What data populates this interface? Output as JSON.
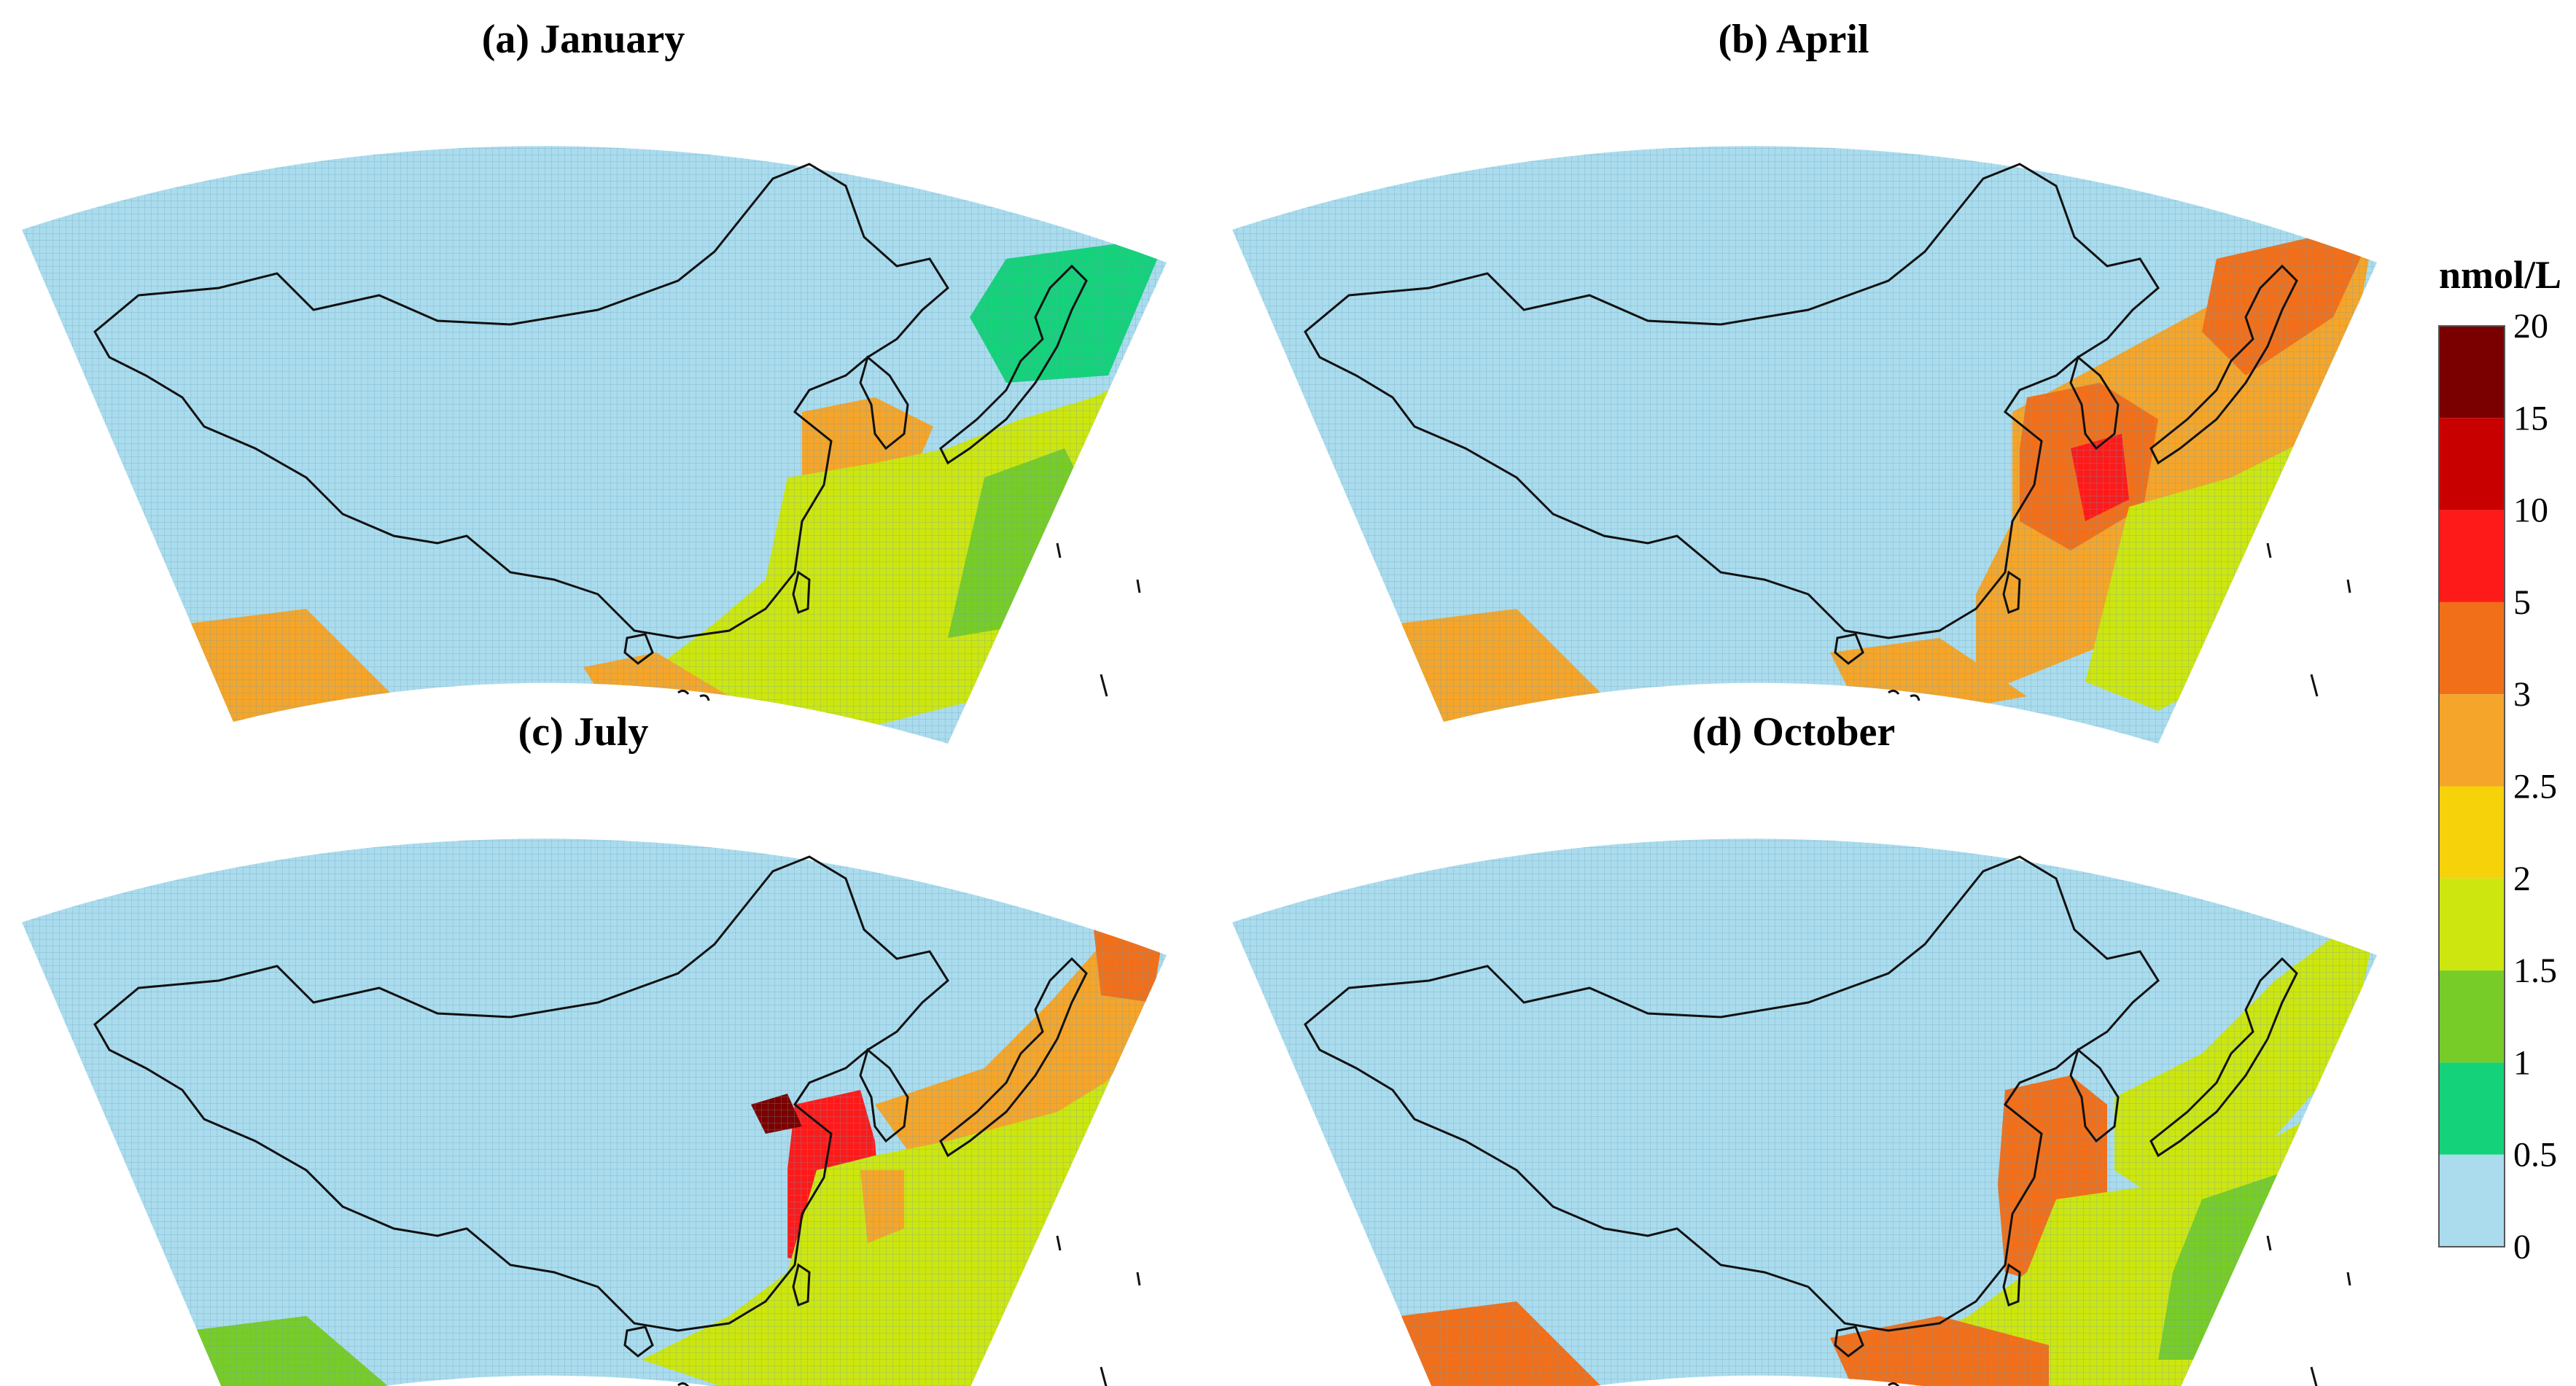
{
  "figure": {
    "panels": [
      {
        "id": "jan",
        "title": "(a) January",
        "level": 1
      },
      {
        "id": "apr",
        "title": "(b) April",
        "level": 2
      },
      {
        "id": "jul",
        "title": "(c) July",
        "level": 3
      },
      {
        "id": "oct",
        "title": "(d) October",
        "level": 4
      }
    ]
  },
  "colorbar": {
    "unit": "nmol/L",
    "ticks": [
      "20",
      "15",
      "10",
      "5",
      "3",
      "2.5",
      "2",
      "1.5",
      "1",
      "0.5",
      "0"
    ],
    "colors": [
      "#7a0000",
      "#c80000",
      "#ff1a1a",
      "#f26f1a",
      "#f5a52a",
      "#f5d20a",
      "#cde60f",
      "#78cc28",
      "#14d27a",
      "#aadcee"
    ]
  },
  "style": {
    "land_color": "#aadcee",
    "grid_color": "#6a9fb2",
    "border_color": "#111111"
  }
}
